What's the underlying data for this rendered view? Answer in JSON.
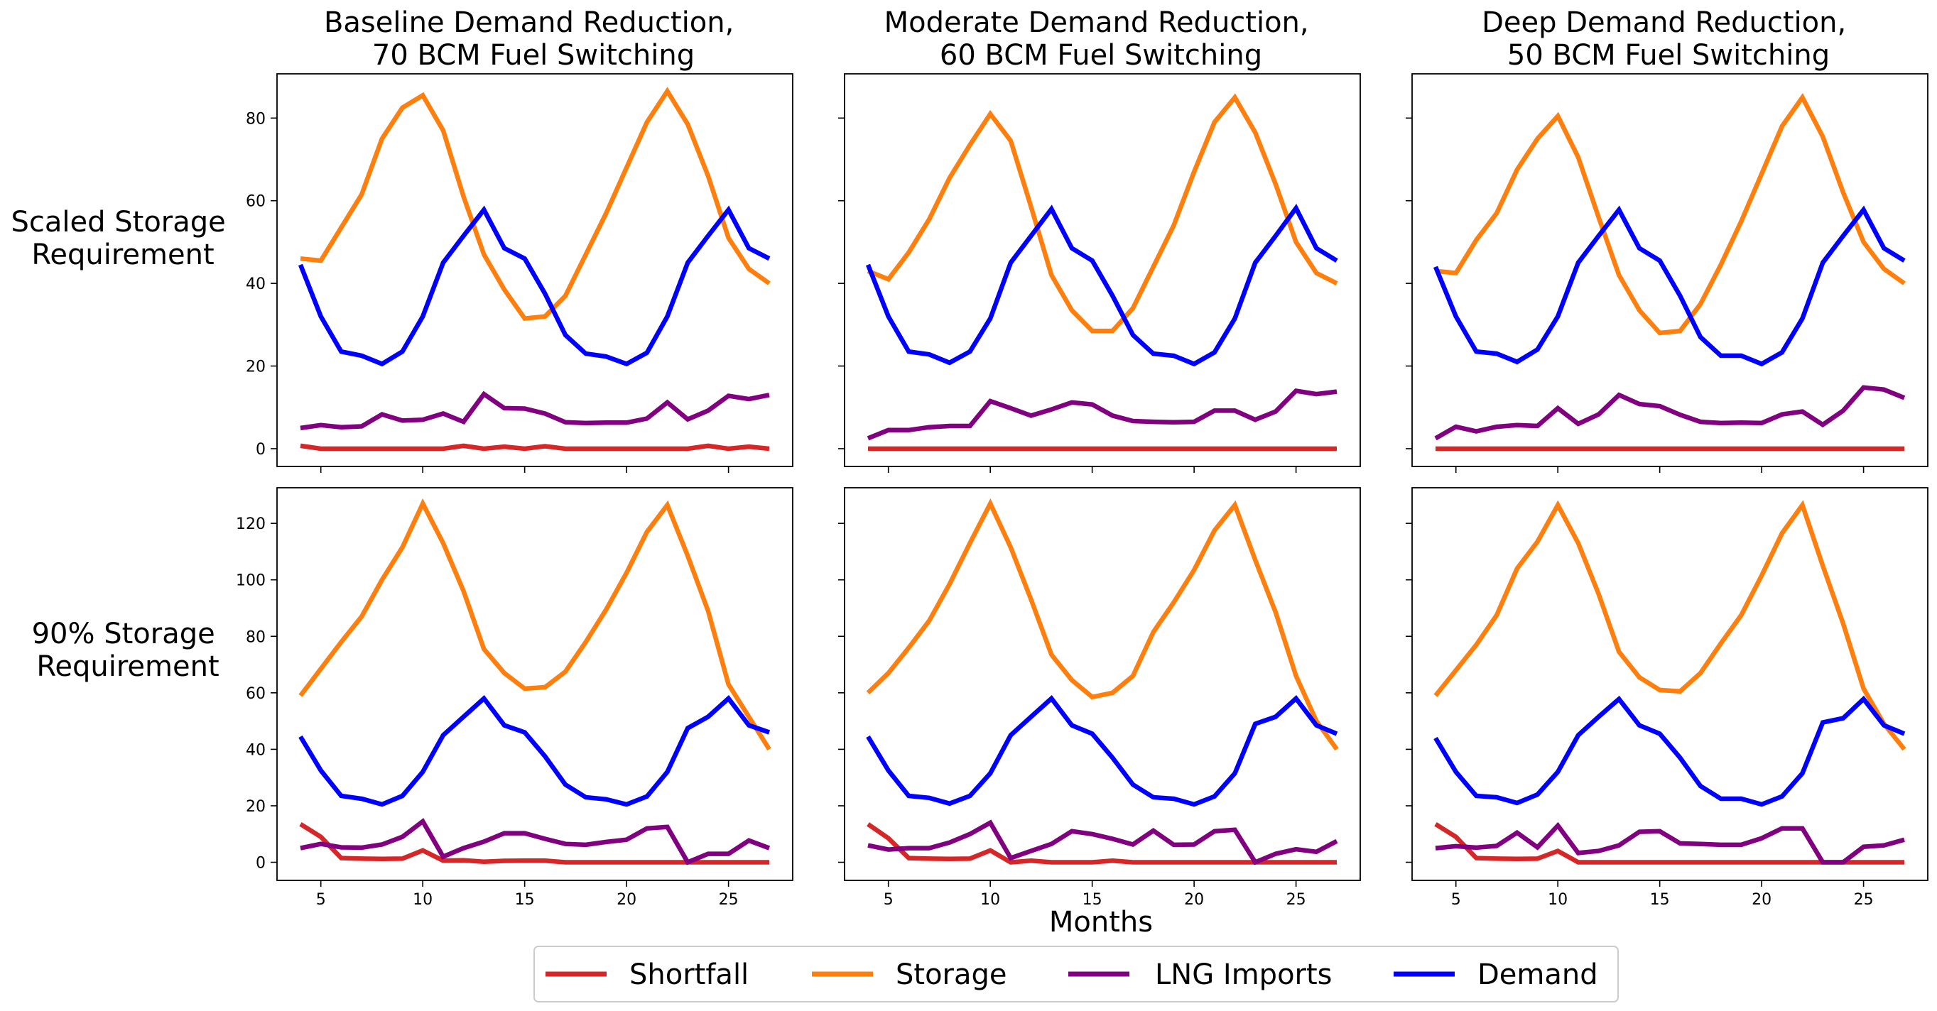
{
  "figure": {
    "xlabel": "Months",
    "row_labels": [
      "Scaled Storage\nRequirement",
      "90% Storage\nRequirement"
    ],
    "column_titles": [
      "Baseline Demand Reduction,\n70 BCM Fuel Switching",
      "Moderate Demand Reduction,\n60 BCM Fuel Switching",
      "Deep Demand Reduction,\n50 BCM Fuel Switching"
    ],
    "legend": [
      {
        "key": "shortfall",
        "label": "Shortfall"
      },
      {
        "key": "storage",
        "label": "Storage"
      },
      {
        "key": "lng",
        "label": "LNG Imports"
      },
      {
        "key": "demand",
        "label": "Demand"
      }
    ],
    "colors": {
      "shortfall": "#d62728",
      "storage": "#ff7f0e",
      "lng": "#800080",
      "demand": "#0000ff"
    }
  },
  "chart_data": [
    {
      "type": "line",
      "title": "Baseline Demand Reduction,\n70 BCM Fuel Switching",
      "row_label": "Scaled Storage\nRequirement",
      "xlabel": "Months",
      "x": [
        4,
        5,
        6,
        7,
        8,
        9,
        10,
        11,
        12,
        13,
        14,
        15,
        16,
        17,
        18,
        19,
        20,
        21,
        22,
        23,
        24,
        25,
        26,
        27
      ],
      "xticks": [
        5,
        10,
        15,
        20,
        25
      ],
      "yticks": [
        0,
        20,
        40,
        60,
        80
      ],
      "xlim": [
        2.85,
        28.15
      ],
      "ylim": [
        -4.3,
        90.7
      ],
      "series": [
        {
          "name": "Shortfall",
          "key": "shortfall",
          "values": [
            0.7,
            0,
            0,
            0,
            0,
            0,
            0,
            0,
            0.7,
            0,
            0.5,
            0,
            0.6,
            0,
            0,
            0,
            0,
            0,
            0,
            0,
            0.7,
            0,
            0.5,
            0
          ]
        },
        {
          "name": "Storage",
          "key": "storage",
          "values": [
            46,
            45.5,
            53.5,
            61.5,
            75,
            82.5,
            85.5,
            77,
            61,
            47,
            38.5,
            31.5,
            32,
            37,
            47,
            57,
            68,
            79,
            86.5,
            78.5,
            66,
            51,
            43.5,
            40
          ]
        },
        {
          "name": "LNG Imports",
          "key": "lng",
          "values": [
            5,
            5.7,
            5.2,
            5.4,
            8.3,
            6.8,
            7,
            8.5,
            6.5,
            13.2,
            9.8,
            9.7,
            8.5,
            6.4,
            6.2,
            6.3,
            6.3,
            7.3,
            11.2,
            7.1,
            9.2,
            12.8,
            12,
            13
          ]
        },
        {
          "name": "Demand",
          "key": "demand",
          "values": [
            44.5,
            32,
            23.5,
            22.5,
            20.5,
            23.5,
            32,
            45,
            51.5,
            57.8,
            48.5,
            46,
            37.5,
            27.5,
            23,
            22.3,
            20.5,
            23.2,
            32,
            45,
            51.5,
            57.8,
            48.5,
            46
          ]
        }
      ]
    },
    {
      "type": "line",
      "title": "Moderate Demand Reduction,\n60 BCM Fuel Switching",
      "row_label": "Scaled Storage\nRequirement",
      "xlabel": "Months",
      "x": [
        4,
        5,
        6,
        7,
        8,
        9,
        10,
        11,
        12,
        13,
        14,
        15,
        16,
        17,
        18,
        19,
        20,
        21,
        22,
        23,
        24,
        25,
        26,
        27
      ],
      "xticks": [
        5,
        10,
        15,
        20,
        25
      ],
      "yticks": [
        0,
        20,
        40,
        60,
        80
      ],
      "xlim": [
        2.85,
        28.15
      ],
      "ylim": [
        -4.3,
        90.7
      ],
      "series": [
        {
          "name": "Shortfall",
          "key": "shortfall",
          "values": [
            0,
            0,
            0,
            0,
            0,
            0,
            0,
            0,
            0,
            0,
            0,
            0,
            0,
            0,
            0,
            0,
            0,
            0,
            0,
            0,
            0,
            0,
            0,
            0
          ]
        },
        {
          "name": "Storage",
          "key": "storage",
          "values": [
            43,
            41,
            47.5,
            55.5,
            65.5,
            73.5,
            81,
            74.5,
            58.5,
            42,
            33.5,
            28.5,
            28.5,
            34,
            44,
            54,
            67,
            79,
            85,
            76.5,
            64,
            50,
            42.5,
            40
          ]
        },
        {
          "name": "LNG Imports",
          "key": "lng",
          "values": [
            2.5,
            4.5,
            4.5,
            5.2,
            5.5,
            5.5,
            11.5,
            9.8,
            8,
            9.5,
            11.2,
            10.7,
            8,
            6.7,
            6.5,
            6.4,
            6.5,
            9.2,
            9.2,
            7,
            9,
            14,
            13.2,
            13.8
          ]
        },
        {
          "name": "Demand",
          "key": "demand",
          "values": [
            44.5,
            32,
            23.5,
            22.8,
            20.8,
            23.5,
            31.5,
            45,
            51.5,
            58,
            48.5,
            45.5,
            37,
            27.5,
            23,
            22.5,
            20.5,
            23.3,
            31.5,
            45,
            51.5,
            58.2,
            48.5,
            45.5
          ]
        }
      ]
    },
    {
      "type": "line",
      "title": "Deep Demand Reduction,\n50 BCM Fuel Switching",
      "row_label": "Scaled Storage\nRequirement",
      "xlabel": "Months",
      "x": [
        4,
        5,
        6,
        7,
        8,
        9,
        10,
        11,
        12,
        13,
        14,
        15,
        16,
        17,
        18,
        19,
        20,
        21,
        22,
        23,
        24,
        25,
        26,
        27
      ],
      "xticks": [
        5,
        10,
        15,
        20,
        25
      ],
      "yticks": [
        0,
        20,
        40,
        60,
        80
      ],
      "xlim": [
        2.85,
        28.15
      ],
      "ylim": [
        -4.3,
        90.7
      ],
      "series": [
        {
          "name": "Shortfall",
          "key": "shortfall",
          "values": [
            0,
            0,
            0,
            0,
            0,
            0,
            0,
            0,
            0,
            0,
            0,
            0,
            0,
            0,
            0,
            0,
            0,
            0,
            0,
            0,
            0,
            0,
            0,
            0
          ]
        },
        {
          "name": "Storage",
          "key": "storage",
          "values": [
            43,
            42.5,
            50.5,
            57,
            67.5,
            75,
            80.5,
            70.5,
            56,
            42,
            33.5,
            28,
            28.5,
            35,
            44.5,
            55,
            66.5,
            78,
            85,
            75.5,
            62,
            50,
            43.5,
            40
          ]
        },
        {
          "name": "LNG Imports",
          "key": "lng",
          "values": [
            2.5,
            5.3,
            4.2,
            5.3,
            5.7,
            5.5,
            9.8,
            6,
            8.3,
            13,
            10.8,
            10.3,
            8.2,
            6.5,
            6.2,
            6.3,
            6.2,
            8.3,
            9,
            5.8,
            9.2,
            14.8,
            14.3,
            12.3
          ]
        },
        {
          "name": "Demand",
          "key": "demand",
          "values": [
            44,
            32,
            23.5,
            23,
            21,
            24,
            32,
            45,
            51.5,
            57.8,
            48.5,
            45.5,
            37,
            27,
            22.5,
            22.5,
            20.5,
            23.3,
            31.5,
            45,
            51.5,
            57.8,
            48.5,
            45.5
          ]
        }
      ]
    },
    {
      "type": "line",
      "title": "",
      "row_label": "90% Storage\nRequirement",
      "xlabel": "Months",
      "x": [
        4,
        5,
        6,
        7,
        8,
        9,
        10,
        11,
        12,
        13,
        14,
        15,
        16,
        17,
        18,
        19,
        20,
        21,
        22,
        23,
        24,
        25,
        26,
        27
      ],
      "xticks": [
        5,
        10,
        15,
        20,
        25
      ],
      "yticks": [
        0,
        20,
        40,
        60,
        80,
        100,
        120
      ],
      "xlim": [
        2.85,
        28.15
      ],
      "ylim": [
        -6.4,
        132.6
      ],
      "series": [
        {
          "name": "Shortfall",
          "key": "shortfall",
          "values": [
            13.5,
            9,
            1.5,
            1.3,
            1.2,
            1.3,
            4.2,
            0.6,
            0.7,
            0.2,
            0.5,
            0.6,
            0.6,
            0,
            0,
            0,
            0,
            0,
            0,
            0,
            0,
            0,
            0,
            0
          ]
        },
        {
          "name": "Storage",
          "key": "storage",
          "values": [
            59,
            68.5,
            78,
            87,
            100,
            111.5,
            127,
            113,
            96,
            75.5,
            67,
            61.5,
            62,
            67.5,
            78,
            89.5,
            102.5,
            117,
            126.5,
            108.5,
            89,
            63,
            51.5,
            40
          ]
        },
        {
          "name": "LNG Imports",
          "key": "lng",
          "values": [
            5,
            6.5,
            5.3,
            5.2,
            6.3,
            9,
            14.5,
            2,
            5,
            7.3,
            10.3,
            10.3,
            8.3,
            6.5,
            6.2,
            7.2,
            8,
            12,
            12.5,
            0,
            3,
            3,
            7.7,
            5
          ]
        },
        {
          "name": "Demand",
          "key": "demand",
          "values": [
            44.5,
            32.5,
            23.5,
            22.5,
            20.5,
            23.5,
            32,
            45,
            51.5,
            58,
            48.5,
            46,
            37.5,
            27.5,
            23,
            22.3,
            20.5,
            23.3,
            32,
            47.5,
            51.5,
            58,
            48.5,
            46
          ]
        }
      ]
    },
    {
      "type": "line",
      "title": "",
      "row_label": "90% Storage\nRequirement",
      "xlabel": "Months",
      "x": [
        4,
        5,
        6,
        7,
        8,
        9,
        10,
        11,
        12,
        13,
        14,
        15,
        16,
        17,
        18,
        19,
        20,
        21,
        22,
        23,
        24,
        25,
        26,
        27
      ],
      "xticks": [
        5,
        10,
        15,
        20,
        25
      ],
      "yticks": [
        0,
        20,
        40,
        60,
        80,
        100,
        120
      ],
      "xlim": [
        2.85,
        28.15
      ],
      "ylim": [
        -6.4,
        132.6
      ],
      "series": [
        {
          "name": "Shortfall",
          "key": "shortfall",
          "values": [
            13.5,
            8.5,
            1.5,
            1.3,
            1.2,
            1.3,
            4.2,
            0,
            0.6,
            0,
            0,
            0,
            0.6,
            0,
            0,
            0,
            0,
            0,
            0,
            0,
            0,
            0,
            0,
            0
          ]
        },
        {
          "name": "Storage",
          "key": "storage",
          "values": [
            60,
            67,
            76,
            85.5,
            98.5,
            113,
            127,
            111.5,
            93,
            73.5,
            64.5,
            58.5,
            60,
            66,
            81.5,
            92,
            103.5,
            117.5,
            126.5,
            107,
            88.5,
            66,
            50,
            40
          ]
        },
        {
          "name": "LNG Imports",
          "key": "lng",
          "values": [
            6,
            4.5,
            5,
            5,
            7,
            10,
            14,
            1.5,
            4,
            6.5,
            11,
            10,
            8.3,
            6.3,
            11.2,
            6.2,
            6.3,
            11,
            11.5,
            0,
            3,
            4.6,
            3.7,
            7.5
          ]
        },
        {
          "name": "Demand",
          "key": "demand",
          "values": [
            44.5,
            32.5,
            23.5,
            22.8,
            20.8,
            23.5,
            31.5,
            45,
            51.5,
            58,
            48.5,
            45.5,
            37,
            27.5,
            23,
            22.5,
            20.5,
            23.3,
            31.5,
            49,
            51.5,
            58,
            48.5,
            45.5
          ]
        }
      ]
    },
    {
      "type": "line",
      "title": "",
      "row_label": "90% Storage\nRequirement",
      "xlabel": "Months",
      "x": [
        4,
        5,
        6,
        7,
        8,
        9,
        10,
        11,
        12,
        13,
        14,
        15,
        16,
        17,
        18,
        19,
        20,
        21,
        22,
        23,
        24,
        25,
        26,
        27
      ],
      "xticks": [
        5,
        10,
        15,
        20,
        25
      ],
      "yticks": [
        0,
        20,
        40,
        60,
        80,
        100,
        120
      ],
      "xlim": [
        2.85,
        28.15
      ],
      "ylim": [
        -6.4,
        132.6
      ],
      "series": [
        {
          "name": "Shortfall",
          "key": "shortfall",
          "values": [
            13.5,
            9,
            1.5,
            1.3,
            1.2,
            1.3,
            4,
            0,
            0,
            0,
            0,
            0,
            0,
            0,
            0,
            0,
            0,
            0,
            0,
            0,
            0,
            0,
            0,
            0
          ]
        },
        {
          "name": "Storage",
          "key": "storage",
          "values": [
            59,
            68,
            77,
            87.5,
            104,
            113.5,
            126.5,
            113,
            95,
            74.5,
            65.5,
            61,
            60.5,
            67,
            77.5,
            87.5,
            101.5,
            116.5,
            126.5,
            105,
            84.5,
            61.5,
            49,
            40
          ]
        },
        {
          "name": "LNG Imports",
          "key": "lng",
          "values": [
            5,
            5.7,
            5.2,
            5.8,
            10.5,
            5.3,
            13,
            3.3,
            4,
            6,
            10.8,
            11,
            6.7,
            6.5,
            6.2,
            6.2,
            8.5,
            12,
            12,
            0,
            0,
            5.5,
            6,
            8
          ]
        },
        {
          "name": "Demand",
          "key": "demand",
          "values": [
            44,
            32,
            23.5,
            23,
            21,
            24,
            32,
            45,
            51.5,
            57.8,
            48.5,
            45.5,
            37,
            27,
            22.5,
            22.5,
            20.5,
            23.3,
            31.5,
            49.5,
            51,
            57.8,
            48.5,
            45.5
          ]
        }
      ]
    }
  ]
}
